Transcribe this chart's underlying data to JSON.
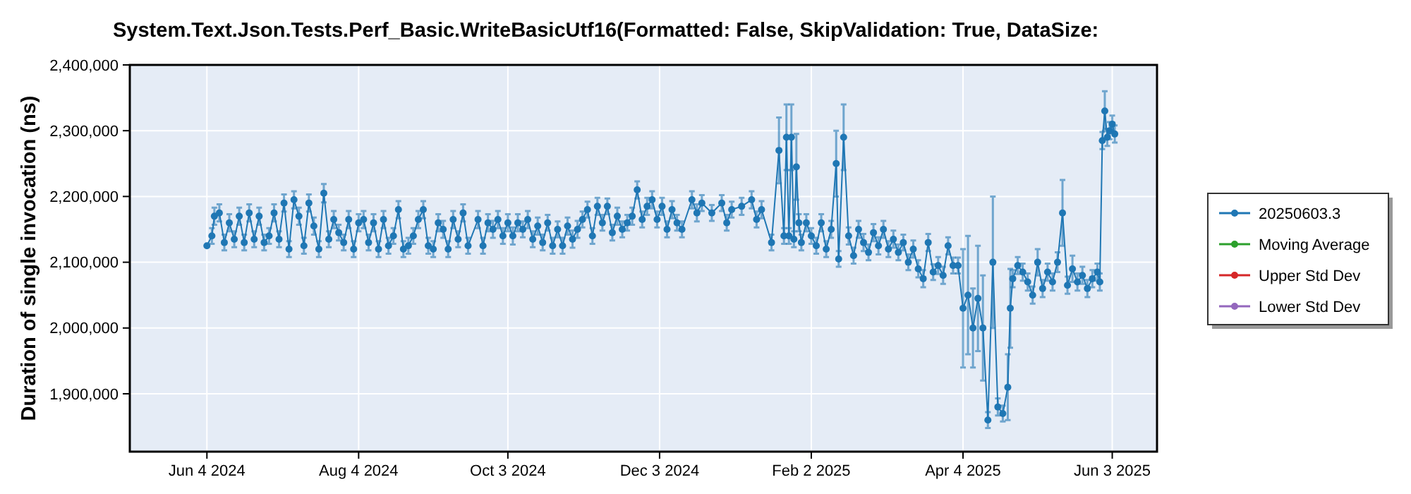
{
  "chart_data": {
    "type": "line",
    "title": "System.Text.Json.Tests.Perf_Basic.WriteBasicUtf16(Formatted: False, SkipValidation: True, DataSize:",
    "ylabel": "Duration of single invocation (ns)",
    "xlim": [
      "2024-05-04",
      "2025-06-21"
    ],
    "xticks": [
      {
        "value": "2024-06-04",
        "label": "Jun 4 2024"
      },
      {
        "value": "2024-08-04",
        "label": "Aug 4 2024"
      },
      {
        "value": "2024-10-03",
        "label": "Oct 3 2024"
      },
      {
        "value": "2024-12-03",
        "label": "Dec 3 2024"
      },
      {
        "value": "2025-02-02",
        "label": "Feb 2 2025"
      },
      {
        "value": "2025-04-04",
        "label": "Apr 4 2025"
      },
      {
        "value": "2025-06-03",
        "label": "Jun 3 2025"
      }
    ],
    "ylim": [
      1812000,
      2400000
    ],
    "yticks": [
      {
        "value": 1900000,
        "label": "1,900,000"
      },
      {
        "value": 2000000,
        "label": "2,000,000"
      },
      {
        "value": 2100000,
        "label": "2,100,000"
      },
      {
        "value": 2200000,
        "label": "2,200,000"
      },
      {
        "value": 2300000,
        "label": "2,300,000"
      },
      {
        "value": 2400000,
        "label": "2,400,000"
      }
    ],
    "grid": true,
    "legend": "right",
    "marker": "circle",
    "line_style": "solid",
    "series": [
      {
        "name": "20250603.3",
        "color": "#1f77b4",
        "x": [
          "2024-06-04",
          "2024-06-06",
          "2024-06-07",
          "2024-06-09",
          "2024-06-11",
          "2024-06-13",
          "2024-06-15",
          "2024-06-17",
          "2024-06-19",
          "2024-06-21",
          "2024-06-23",
          "2024-06-25",
          "2024-06-27",
          "2024-06-29",
          "2024-07-01",
          "2024-07-03",
          "2024-07-05",
          "2024-07-07",
          "2024-07-09",
          "2024-07-11",
          "2024-07-13",
          "2024-07-15",
          "2024-07-17",
          "2024-07-19",
          "2024-07-21",
          "2024-07-23",
          "2024-07-25",
          "2024-07-27",
          "2024-07-29",
          "2024-07-31",
          "2024-08-02",
          "2024-08-04",
          "2024-08-06",
          "2024-08-08",
          "2024-08-10",
          "2024-08-12",
          "2024-08-14",
          "2024-08-16",
          "2024-08-18",
          "2024-08-20",
          "2024-08-22",
          "2024-08-24",
          "2024-08-26",
          "2024-08-28",
          "2024-08-30",
          "2024-09-01",
          "2024-09-03",
          "2024-09-05",
          "2024-09-07",
          "2024-09-09",
          "2024-09-11",
          "2024-09-13",
          "2024-09-15",
          "2024-09-17",
          "2024-09-21",
          "2024-09-23",
          "2024-09-25",
          "2024-09-27",
          "2024-09-29",
          "2024-10-01",
          "2024-10-03",
          "2024-10-05",
          "2024-10-07",
          "2024-10-09",
          "2024-10-11",
          "2024-10-13",
          "2024-10-15",
          "2024-10-17",
          "2024-10-19",
          "2024-10-21",
          "2024-10-23",
          "2024-10-25",
          "2024-10-27",
          "2024-10-29",
          "2024-10-31",
          "2024-11-02",
          "2024-11-04",
          "2024-11-06",
          "2024-11-08",
          "2024-11-10",
          "2024-11-12",
          "2024-11-14",
          "2024-11-16",
          "2024-11-18",
          "2024-11-20",
          "2024-11-22",
          "2024-11-24",
          "2024-11-26",
          "2024-11-28",
          "2024-11-30",
          "2024-12-02",
          "2024-12-04",
          "2024-12-06",
          "2024-12-08",
          "2024-12-10",
          "2024-12-12",
          "2024-12-16",
          "2024-12-18",
          "2024-12-20",
          "2024-12-24",
          "2024-12-28",
          "2024-12-30",
          "2025-01-01",
          "2025-01-05",
          "2025-01-09",
          "2025-01-11",
          "2025-01-13",
          "2025-01-17",
          "2025-01-20",
          "2025-01-22",
          "2025-01-23",
          "2025-01-24",
          "2025-01-25",
          "2025-01-26",
          "2025-01-27",
          "2025-01-28",
          "2025-01-29",
          "2025-01-31",
          "2025-02-02",
          "2025-02-04",
          "2025-02-06",
          "2025-02-08",
          "2025-02-10",
          "2025-02-12",
          "2025-02-13",
          "2025-02-15",
          "2025-02-17",
          "2025-02-19",
          "2025-02-21",
          "2025-02-23",
          "2025-02-25",
          "2025-02-27",
          "2025-03-01",
          "2025-03-03",
          "2025-03-05",
          "2025-03-07",
          "2025-03-09",
          "2025-03-11",
          "2025-03-13",
          "2025-03-15",
          "2025-03-17",
          "2025-03-19",
          "2025-03-21",
          "2025-03-23",
          "2025-03-25",
          "2025-03-27",
          "2025-03-29",
          "2025-03-31",
          "2025-04-02",
          "2025-04-04",
          "2025-04-06",
          "2025-04-08",
          "2025-04-10",
          "2025-04-12",
          "2025-04-14",
          "2025-04-16",
          "2025-04-18",
          "2025-04-20",
          "2025-04-22",
          "2025-04-23",
          "2025-04-24",
          "2025-04-26",
          "2025-04-28",
          "2025-04-30",
          "2025-05-02",
          "2025-05-04",
          "2025-05-06",
          "2025-05-08",
          "2025-05-10",
          "2025-05-12",
          "2025-05-14",
          "2025-05-16",
          "2025-05-18",
          "2025-05-20",
          "2025-05-22",
          "2025-05-24",
          "2025-05-26",
          "2025-05-28",
          "2025-05-29",
          "2025-05-30",
          "2025-05-31",
          "2025-06-01",
          "2025-06-02",
          "2025-06-03",
          "2025-06-04"
        ],
        "values": [
          2125000,
          2140000,
          2170000,
          2175000,
          2130000,
          2160000,
          2135000,
          2170000,
          2130000,
          2175000,
          2135000,
          2170000,
          2130000,
          2140000,
          2175000,
          2135000,
          2190000,
          2120000,
          2195000,
          2170000,
          2125000,
          2190000,
          2155000,
          2120000,
          2205000,
          2135000,
          2165000,
          2145000,
          2130000,
          2165000,
          2120000,
          2160000,
          2165000,
          2130000,
          2160000,
          2120000,
          2165000,
          2125000,
          2140000,
          2180000,
          2120000,
          2125000,
          2140000,
          2165000,
          2180000,
          2125000,
          2120000,
          2160000,
          2150000,
          2120000,
          2165000,
          2135000,
          2175000,
          2125000,
          2165000,
          2125000,
          2160000,
          2150000,
          2165000,
          2140000,
          2160000,
          2140000,
          2160000,
          2150000,
          2165000,
          2135000,
          2155000,
          2130000,
          2160000,
          2125000,
          2150000,
          2125000,
          2155000,
          2135000,
          2150000,
          2165000,
          2180000,
          2140000,
          2185000,
          2160000,
          2185000,
          2145000,
          2170000,
          2150000,
          2160000,
          2170000,
          2210000,
          2165000,
          2185000,
          2195000,
          2165000,
          2185000,
          2150000,
          2180000,
          2160000,
          2150000,
          2195000,
          2175000,
          2190000,
          2175000,
          2190000,
          2160000,
          2180000,
          2185000,
          2195000,
          2165000,
          2180000,
          2130000,
          2270000,
          2140000,
          2290000,
          2140000,
          2290000,
          2135000,
          2245000,
          2160000,
          2130000,
          2160000,
          2140000,
          2125000,
          2160000,
          2120000,
          2150000,
          2250000,
          2105000,
          2290000,
          2140000,
          2110000,
          2150000,
          2130000,
          2115000,
          2145000,
          2125000,
          2150000,
          2120000,
          2135000,
          2115000,
          2130000,
          2100000,
          2120000,
          2090000,
          2075000,
          2130000,
          2085000,
          2095000,
          2080000,
          2125000,
          2095000,
          2095000,
          2030000,
          2050000,
          2000000,
          2045000,
          2000000,
          1860000,
          2100000,
          1880000,
          1870000,
          1910000,
          2030000,
          2075000,
          2095000,
          2085000,
          2070000,
          2050000,
          2100000,
          2060000,
          2085000,
          2070000,
          2100000,
          2175000,
          2065000,
          2090000,
          2070000,
          2080000,
          2060000,
          2075000,
          2085000,
          2070000,
          2285000,
          2330000,
          2290000,
          2300000,
          2310000,
          2295000
        ],
        "errors": [
          null,
          12000,
          13000,
          13000,
          12000,
          13000,
          12000,
          13000,
          12000,
          13000,
          12000,
          13000,
          12000,
          12000,
          13000,
          12000,
          13000,
          12000,
          13000,
          13000,
          12000,
          13000,
          13000,
          12000,
          14000,
          12000,
          13000,
          12000,
          12000,
          13000,
          12000,
          13000,
          13000,
          12000,
          13000,
          12000,
          13000,
          12000,
          12000,
          13000,
          12000,
          12000,
          12000,
          13000,
          13000,
          12000,
          12000,
          13000,
          13000,
          12000,
          13000,
          12000,
          13000,
          12000,
          13000,
          12000,
          13000,
          13000,
          13000,
          12000,
          13000,
          13000,
          13000,
          12000,
          13000,
          12000,
          13000,
          12000,
          12000,
          12000,
          12000,
          12000,
          13000,
          13000,
          13000,
          12000,
          12000,
          12000,
          13000,
          12000,
          12000,
          12000,
          13000,
          12000,
          12000,
          13000,
          13000,
          12000,
          13000,
          13000,
          12000,
          13000,
          12000,
          13000,
          12000,
          12000,
          13000,
          13000,
          12000,
          12000,
          12000,
          12000,
          12000,
          13000,
          13000,
          12000,
          13000,
          12000,
          50000,
          12000,
          50000,
          12000,
          50000,
          12000,
          50000,
          13000,
          12000,
          13000,
          12000,
          12000,
          13000,
          12000,
          13000,
          50000,
          12000,
          50000,
          13000,
          12000,
          13000,
          13000,
          12000,
          13000,
          13000,
          13000,
          12000,
          13000,
          12000,
          12000,
          12000,
          13000,
          13000,
          13000,
          13000,
          12000,
          13000,
          13000,
          13000,
          12000,
          12000,
          90000,
          90000,
          60000,
          80000,
          80000,
          12000,
          100000,
          13000,
          12000,
          50000,
          60000,
          13000,
          13000,
          13000,
          13000,
          13000,
          20000,
          13000,
          13000,
          13000,
          15000,
          50000,
          13000,
          20000,
          13000,
          13000,
          13000,
          13000,
          13000,
          13000,
          13000,
          30000,
          13000,
          13000,
          13000,
          13000
        ]
      },
      {
        "name": "Moving Average",
        "color": "#2ca02c"
      },
      {
        "name": "Upper Std Dev",
        "color": "#d62728"
      },
      {
        "name": "Lower Std Dev",
        "color": "#9467bd"
      }
    ]
  }
}
